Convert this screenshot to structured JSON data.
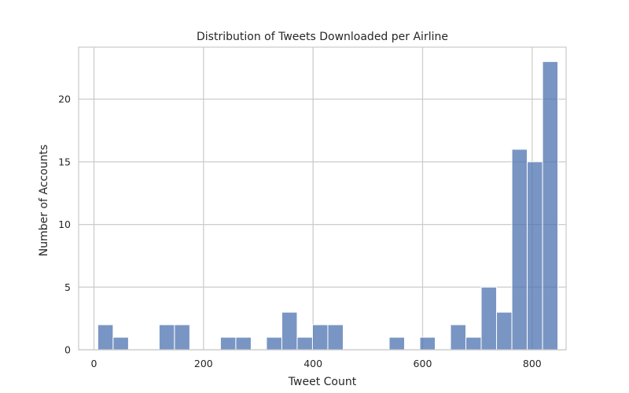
{
  "chart_data": {
    "type": "bar",
    "title": "Distribution of Tweets Downloaded per Airline",
    "xlabel": "Tweet Count",
    "ylabel": "Number of Accounts",
    "xlim": [
      -28,
      862
    ],
    "ylim": [
      0,
      24.15
    ],
    "x_ticks": [
      0,
      200,
      400,
      600,
      800
    ],
    "y_ticks": [
      0,
      5,
      10,
      15,
      20
    ],
    "grid": true,
    "bin_width": 28,
    "bins": [
      {
        "start": 7,
        "end": 35,
        "count": 2
      },
      {
        "start": 35,
        "end": 63,
        "count": 1
      },
      {
        "start": 63,
        "end": 91,
        "count": 0
      },
      {
        "start": 91,
        "end": 119,
        "count": 0
      },
      {
        "start": 119,
        "end": 147,
        "count": 2
      },
      {
        "start": 147,
        "end": 175,
        "count": 2
      },
      {
        "start": 175,
        "end": 203,
        "count": 0
      },
      {
        "start": 203,
        "end": 231,
        "count": 0
      },
      {
        "start": 231,
        "end": 259,
        "count": 1
      },
      {
        "start": 259,
        "end": 287,
        "count": 1
      },
      {
        "start": 287,
        "end": 315,
        "count": 0
      },
      {
        "start": 315,
        "end": 343,
        "count": 1
      },
      {
        "start": 343,
        "end": 371,
        "count": 3
      },
      {
        "start": 371,
        "end": 399,
        "count": 1
      },
      {
        "start": 399,
        "end": 427,
        "count": 2
      },
      {
        "start": 427,
        "end": 455,
        "count": 2
      },
      {
        "start": 455,
        "end": 483,
        "count": 0
      },
      {
        "start": 483,
        "end": 511,
        "count": 0
      },
      {
        "start": 511,
        "end": 539,
        "count": 0
      },
      {
        "start": 539,
        "end": 567,
        "count": 1
      },
      {
        "start": 567,
        "end": 595,
        "count": 0
      },
      {
        "start": 595,
        "end": 623,
        "count": 1
      },
      {
        "start": 623,
        "end": 651,
        "count": 0
      },
      {
        "start": 651,
        "end": 679,
        "count": 2
      },
      {
        "start": 679,
        "end": 707,
        "count": 1
      },
      {
        "start": 707,
        "end": 735,
        "count": 5
      },
      {
        "start": 735,
        "end": 763,
        "count": 3
      },
      {
        "start": 763,
        "end": 791,
        "count": 16
      },
      {
        "start": 791,
        "end": 819,
        "count": 15
      },
      {
        "start": 819,
        "end": 847,
        "count": 23
      }
    ],
    "colors": {
      "bar_fill": "#4c72b0",
      "bar_edge": "#ffffff",
      "grid": "#cccccc",
      "text": "#262626",
      "background": "#ffffff"
    }
  }
}
